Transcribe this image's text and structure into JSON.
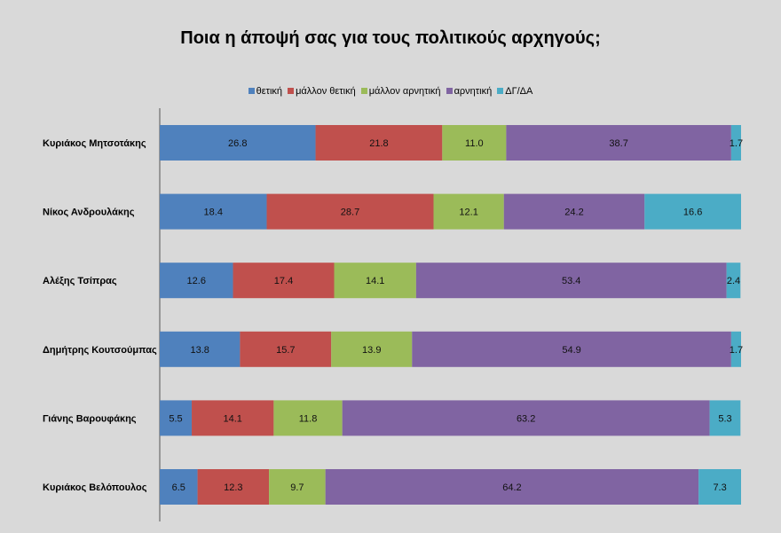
{
  "chart_data": {
    "type": "bar",
    "orientation": "horizontal",
    "stacked": true,
    "title": "Ποια η άποψή σας για τους πολιτικούς αρχηγούς;",
    "legend_position": "top",
    "grid": false,
    "xlim": [
      0,
      100
    ],
    "categories": [
      "Κυριάκος Μητσοτάκης",
      "Νίκος Ανδρουλάκης",
      "Αλέξης Τσίπρας",
      "Δημήτρης Κουτσούμπας",
      "Γιάνης Βαρουφάκης",
      "Κυριάκος Βελόπουλος"
    ],
    "series": [
      {
        "name": "θετική",
        "color": "#4f81bd",
        "values": [
          26.8,
          18.4,
          12.6,
          13.8,
          5.5,
          6.5
        ]
      },
      {
        "name": "μάλλον θετική",
        "color": "#c0504d",
        "values": [
          21.8,
          28.7,
          17.4,
          15.7,
          14.1,
          12.3
        ]
      },
      {
        "name": "μάλλον αρνητική",
        "color": "#9bbb59",
        "values": [
          11.0,
          12.1,
          14.1,
          13.9,
          11.8,
          9.7
        ]
      },
      {
        "name": "αρνητική",
        "color": "#8064a2",
        "values": [
          38.7,
          24.2,
          53.4,
          54.9,
          63.2,
          64.2
        ]
      },
      {
        "name": "ΔΓ/ΔΑ",
        "color": "#4bacc6",
        "values": [
          1.7,
          16.6,
          2.4,
          1.7,
          5.3,
          7.3
        ]
      }
    ]
  }
}
